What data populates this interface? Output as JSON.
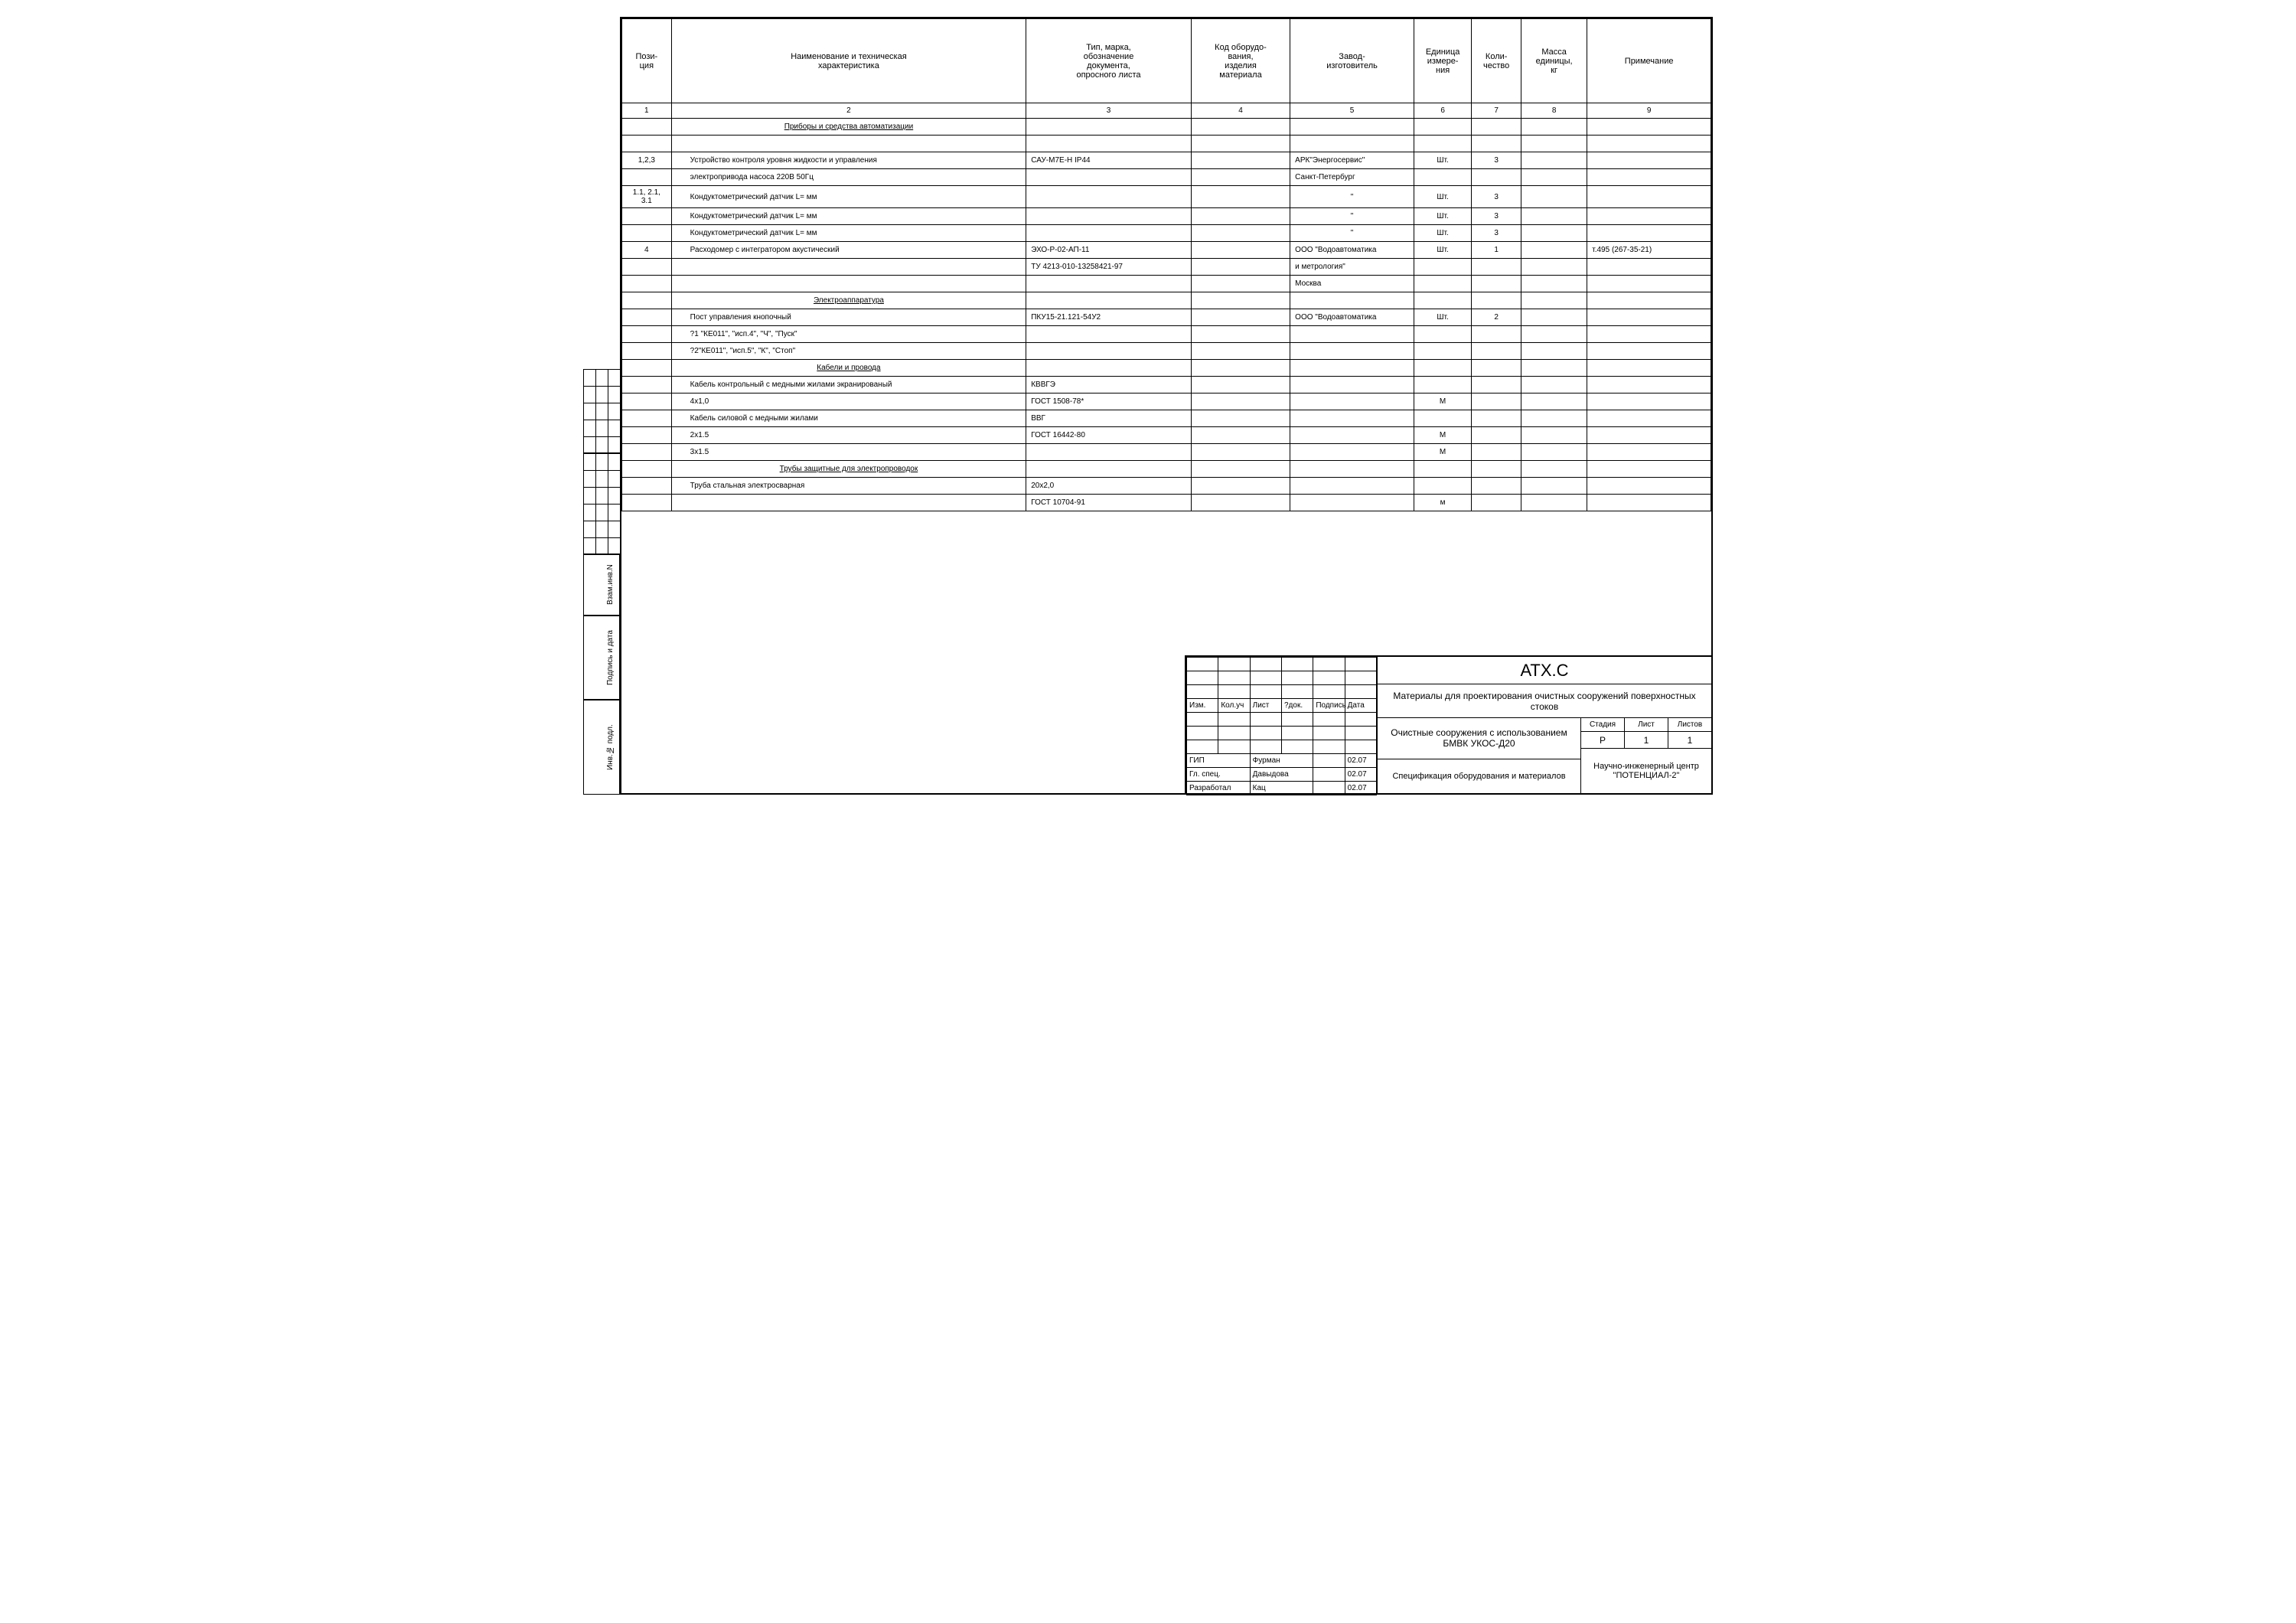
{
  "headers": {
    "c1": "Пози-\nция",
    "c2": "Наименование и техническая\nхарактеристика",
    "c3": "Тип, марка,\nобозначение\nдокумента,\nопросного листа",
    "c4": "Код оборудо-\nвания,\nизделия\nматериала",
    "c5": "Завод-\nизготовитель",
    "c6": "Единица\nизмере-\nния",
    "c7": "Коли-\nчество",
    "c8": "Масса\nединицы,\nкг",
    "c9": "Примечание"
  },
  "colnums": [
    "1",
    "2",
    "3",
    "4",
    "5",
    "6",
    "7",
    "8",
    "9"
  ],
  "rows": [
    {
      "c2_head": "Приборы и средства автоматизации"
    },
    {},
    {
      "c1": "1,2,3",
      "c2": "Устройство контроля уровня жидкости и управления",
      "c3": "САУ-М7Е-Н   IP44",
      "c5": "АРК\"Энергосервис\"",
      "c6": "Шт.",
      "c7": "3"
    },
    {
      "c2": "электропривода насоса 220В 50Гц",
      "c5": "Санкт-Петербург"
    },
    {
      "c1": "1.1, 2.1, 3.1",
      "c2": "Кондуктометрический датчик  L=   мм",
      "c5": "\"",
      "c6": "Шт.",
      "c7": "3"
    },
    {
      "c2": "Кондуктометрический датчик  L=   мм",
      "c5": "\"",
      "c6": "Шт.",
      "c7": "3"
    },
    {
      "c2": "Кондуктометрический датчик  L=   мм",
      "c5": "\"",
      "c6": "Шт.",
      "c7": "3"
    },
    {
      "c1": "4",
      "c2": "Расходомер с интегратором акустический",
      "c3": "ЭХО-Р-02-АП-11",
      "c5": "ООО \"Водоавтоматика",
      "c6": "Шт.",
      "c7": "1",
      "c9": "т.495 (267-35-21)"
    },
    {
      "c3": "ТУ 4213-010-13258421-97",
      "c5": "и метрология\""
    },
    {
      "c5": "Москва"
    },
    {
      "c2_head": "Электроаппаратура"
    },
    {
      "c2": "Пост управления кнопочный",
      "c3": "ПКУ15-21.121-54У2",
      "c5": "ООО \"Водоавтоматика",
      "c6": "Шт.",
      "c7": "2"
    },
    {
      "c2": "?1 \"КЕ011\", \"исп.4\", \"Ч\", \"Пуск\""
    },
    {
      "c2": "?2\"КЕ011\", \"исп.5\", \"К\", \"Стоп\""
    },
    {
      "c2_head": "Кабели и провода"
    },
    {
      "c2": "Кабель контрольный с медными жилами  экранированый",
      "c3": "КВВГЭ"
    },
    {
      "c2": "4х1,0",
      "c3": "ГОСТ 1508-78*",
      "c6": "М"
    },
    {
      "c2": "Кабель силовой с медными жилами",
      "c3": "ВВГ"
    },
    {
      "c2": "2х1.5",
      "c3": "ГОСТ 16442-80",
      "c6": "М"
    },
    {
      "c2": "3х1.5",
      "c6": "М"
    },
    {
      "c2_head": "Трубы защитные для электропроводок"
    },
    {
      "c2": "Труба стальная электросварная",
      "c3": "   20х2,0"
    },
    {
      "c3": "ГОСТ 10704-91",
      "c6": "м"
    }
  ],
  "side": {
    "inv_podl": "Инв.№ подл.",
    "podpis_data": "Подпись и дата",
    "vzam_inv": "Взам.инв.N"
  },
  "tb": {
    "rev_headers": [
      "Изм.",
      "Кол.уч",
      "Лист",
      "?док.",
      "Подпись",
      "Дата"
    ],
    "roles": [
      {
        "role": "ГИП",
        "name": "Фурман",
        "date": "02.07"
      },
      {
        "role": "Гл. спец.",
        "name": "Давыдова",
        "date": "02.07"
      },
      {
        "role": "Разработал",
        "name": "Кац",
        "date": "02.07"
      }
    ],
    "code": "АТХ.С",
    "title": "Материалы для проектирования очистных сооружений поверхностных стоков",
    "subtitle": "Очистные сооружения с использованием БМВК УКОС-Д20",
    "spec": "Спецификация оборудования и материалов",
    "stage_h": "Стадия",
    "sheet_h": "Лист",
    "sheets_h": "Листов",
    "stage": "Р",
    "sheet": "1",
    "sheets": "1",
    "org": "Научно-инженерный центр \"ПОТЕНЦИАЛ-2\""
  }
}
